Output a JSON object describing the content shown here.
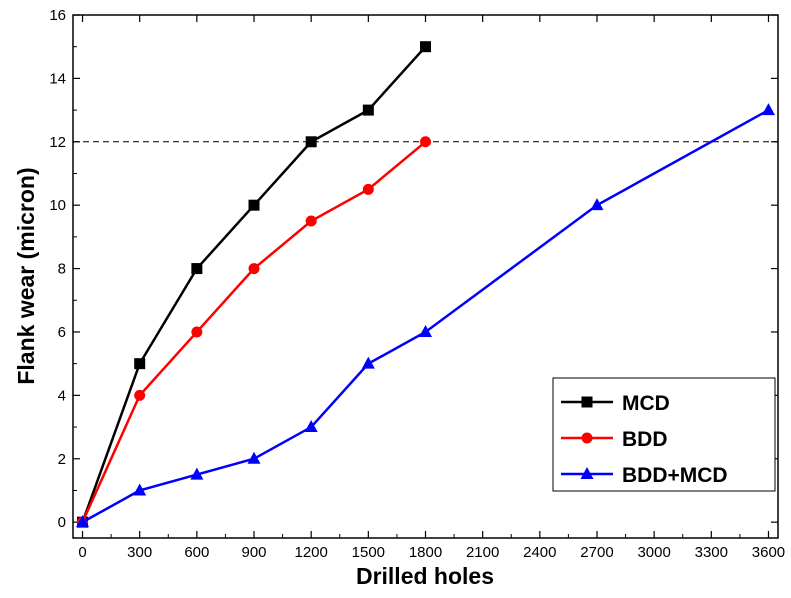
{
  "chart_data": {
    "type": "line",
    "title": "",
    "xlabel": "Drilled holes",
    "ylabel": "Flank wear (micron)",
    "xlim": [
      -50,
      3650
    ],
    "ylim": [
      -0.5,
      16
    ],
    "xticks": [
      0,
      300,
      600,
      900,
      1200,
      1500,
      1800,
      2100,
      2400,
      2700,
      3000,
      3300,
      3600
    ],
    "yticks": [
      0,
      2,
      4,
      6,
      8,
      10,
      12,
      14,
      16
    ],
    "xtick_labels": [
      "0",
      "300",
      "600",
      "900",
      "1200",
      "1500",
      "1800",
      "2100",
      "2400",
      "2700",
      "3000",
      "3300",
      "3600"
    ],
    "ytick_labels": [
      "0",
      "2",
      "4",
      "6",
      "8",
      "10",
      "12",
      "14",
      "16"
    ],
    "reference_line": {
      "y": 12,
      "style": "dashed"
    },
    "grid": false,
    "legend_position": "bottom-right",
    "series": [
      {
        "name": "MCD",
        "color": "#000000",
        "marker": "square",
        "x": [
          0,
          300,
          600,
          900,
          1200,
          1500,
          1800
        ],
        "y": [
          0,
          5,
          8,
          10,
          12,
          13,
          15
        ]
      },
      {
        "name": "BDD",
        "color": "#ff0000",
        "marker": "circle",
        "x": [
          0,
          300,
          600,
          900,
          1200,
          1500,
          1800
        ],
        "y": [
          0,
          4,
          6,
          8,
          9.5,
          10.5,
          12
        ]
      },
      {
        "name": "BDD+MCD",
        "color": "#0000ff",
        "marker": "triangle",
        "x": [
          0,
          300,
          600,
          900,
          1200,
          1500,
          1800,
          2700,
          3600
        ],
        "y": [
          0,
          1,
          1.5,
          2,
          3,
          5,
          6,
          10,
          13
        ]
      }
    ]
  }
}
